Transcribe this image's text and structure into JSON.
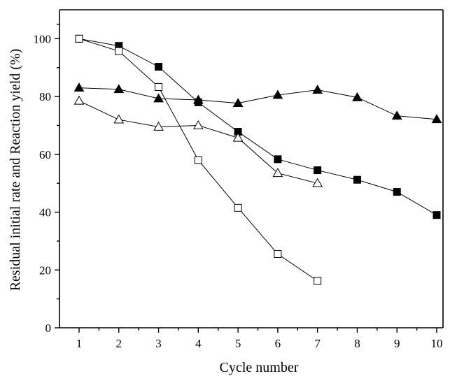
{
  "chart_data": {
    "type": "line",
    "title": "",
    "xlabel": "Cycle number",
    "ylabel": "Residual initial rate and Reaction yield (%)",
    "xlim": [
      0.5,
      10.3
    ],
    "ylim": [
      0,
      110
    ],
    "x_ticks": [
      1,
      2,
      3,
      4,
      5,
      6,
      7,
      8,
      9,
      10
    ],
    "y_ticks": [
      0,
      20,
      40,
      60,
      80,
      100
    ],
    "grid": false,
    "legend": "none",
    "series": [
      {
        "marker": "filled-square",
        "x": [
          1,
          2,
          3,
          4,
          5,
          6,
          7,
          8,
          9,
          10
        ],
        "values": [
          100,
          97.5,
          90.3,
          78,
          67.8,
          58.3,
          54.5,
          51.2,
          47,
          39
        ]
      },
      {
        "marker": "open-square",
        "x": [
          1,
          2,
          3,
          4,
          5,
          6,
          7
        ],
        "values": [
          100,
          95.7,
          83.3,
          58,
          41.5,
          25.5,
          16.2
        ]
      },
      {
        "marker": "filled-triangle",
        "x": [
          1,
          2,
          3,
          4,
          5,
          6,
          7,
          8,
          9,
          10
        ],
        "values": [
          83,
          82.5,
          79.3,
          78.8,
          77.7,
          80.5,
          82.3,
          79.7,
          73.3,
          72.1
        ]
      },
      {
        "marker": "open-triangle",
        "x": [
          1,
          2,
          3,
          4,
          5,
          6,
          7
        ],
        "values": [
          78.5,
          72,
          69.5,
          70,
          65.7,
          53.5,
          50
        ]
      }
    ]
  }
}
